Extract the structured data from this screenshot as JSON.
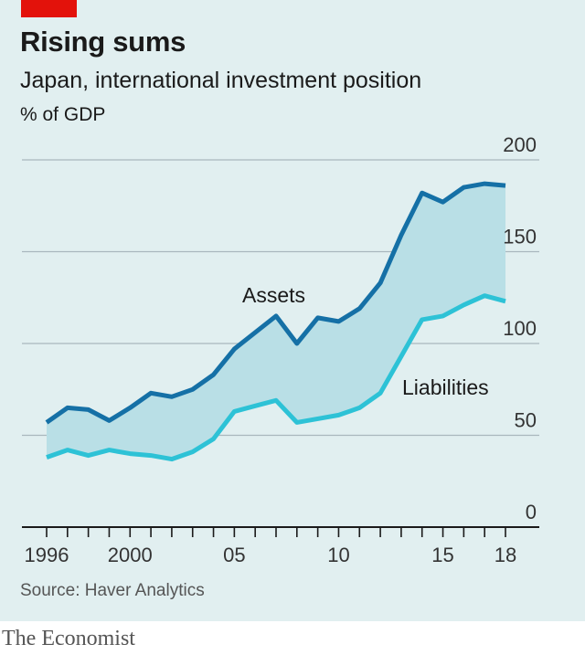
{
  "header": {
    "title": "Rising sums",
    "subtitle": "Japan, international investment position",
    "unit": "% of GDP"
  },
  "footer": {
    "source": "Source: Haver Analytics",
    "brand": "The Economist"
  },
  "colors": {
    "assets": "#1570a6",
    "liabilities": "#2dc2d6",
    "band_fill": "#b9dfe6",
    "background": "#e1eff0",
    "brand_red": "#e3120b"
  },
  "chart_data": {
    "type": "line",
    "x": [
      1996,
      1997,
      1998,
      1999,
      2000,
      2001,
      2002,
      2003,
      2004,
      2005,
      2006,
      2007,
      2008,
      2009,
      2010,
      2011,
      2012,
      2013,
      2014,
      2015,
      2016,
      2017,
      2018
    ],
    "series": [
      {
        "name": "Assets",
        "values": [
          57,
          65,
          64,
          58,
          65,
          73,
          71,
          75,
          83,
          97,
          106,
          115,
          100,
          114,
          112,
          119,
          133,
          159,
          182,
          177,
          185,
          187,
          186
        ]
      },
      {
        "name": "Liabilities",
        "values": [
          38,
          42,
          39,
          42,
          40,
          39,
          37,
          41,
          48,
          63,
          66,
          69,
          57,
          59,
          61,
          65,
          73,
          93,
          113,
          115,
          121,
          126,
          123
        ]
      }
    ],
    "xlim": [
      1996,
      2018
    ],
    "ylim": [
      0,
      200
    ],
    "yticks": [
      0,
      50,
      100,
      150,
      200
    ],
    "ytick_labels": [
      "0",
      "50",
      "100",
      "150",
      "200"
    ],
    "xticks_labeled": [
      1996,
      2000,
      2005,
      2010,
      2015,
      2018
    ],
    "xtick_labels": [
      "1996",
      "2000",
      "05",
      "10",
      "15",
      "18"
    ],
    "grid": true,
    "shaded_between_series": true
  }
}
